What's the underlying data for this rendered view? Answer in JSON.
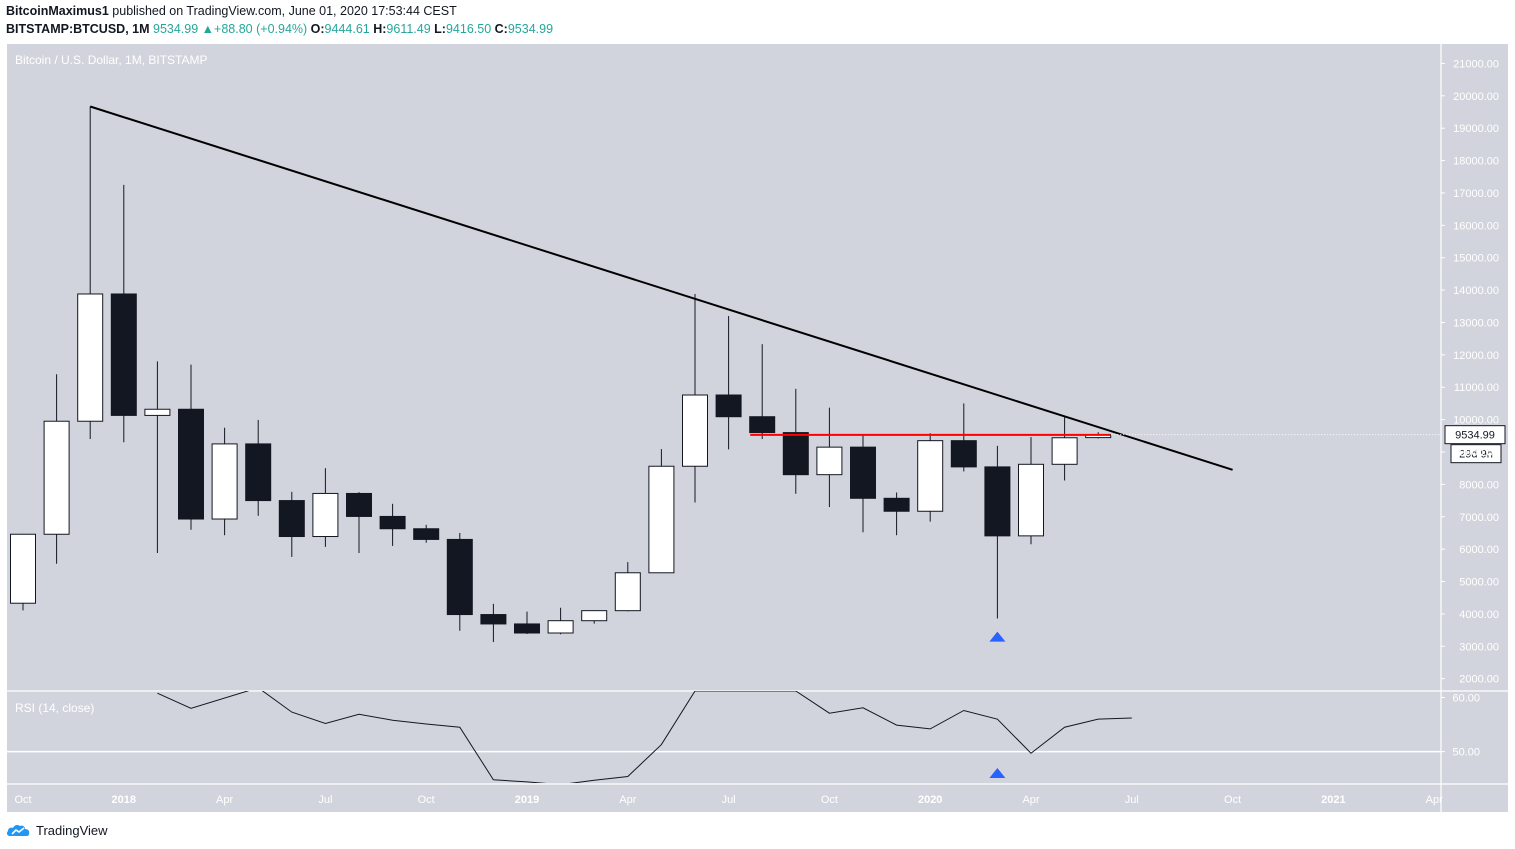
{
  "header": {
    "author": "BitcoinMaximus1",
    "published": "published on TradingView.com, June 01, 2020 17:53:44 CEST",
    "symbol": "BITSTAMP:BTCUSD, 1M",
    "last": "9534.99",
    "change": "+88.80 (+0.94%)",
    "o_label": "O:",
    "o": "9444.61",
    "h_label": "H:",
    "h": "9611.49",
    "l_label": "L:",
    "l": "9416.50",
    "c_label": "C:",
    "c": "9534.99"
  },
  "footer": {
    "brand": "TradingView"
  },
  "colors": {
    "pane_bg": "#d1d4dc",
    "bear_body": "#131722",
    "bull_body": "#ffffff",
    "trendline": "#000000",
    "horizontal_line": "#ff0000",
    "marker": "#2962ff",
    "rsi_line": "#131722"
  },
  "chart_data": [
    {
      "type": "candlestick",
      "title": "Bitcoin / U.S. Dollar, 1M, BITSTAMP",
      "x_axis_ticks": [
        "Oct",
        "2018",
        "Apr",
        "Jul",
        "Oct",
        "2019",
        "Apr",
        "Jul",
        "Oct",
        "2020",
        "Apr",
        "Jul",
        "Oct",
        "2021",
        "Apr"
      ],
      "y_axis_ticks": [
        "21000.00",
        "20000.00",
        "19000.00",
        "18000.00",
        "17000.00",
        "16000.00",
        "15000.00",
        "14000.00",
        "13000.00",
        "12000.00",
        "11000.00",
        "10000.00",
        "9000.00",
        "8000.00",
        "7000.00",
        "6000.00",
        "5000.00",
        "4000.00",
        "3000.00",
        "2000.00"
      ],
      "ylim": [
        1650,
        21600
      ],
      "last_price_label": "9534.99",
      "countdown_label": "29d 9h",
      "candles": [
        {
          "date": "2017-10",
          "o": 4330,
          "h": 6470,
          "l": 4110,
          "c": 6460
        },
        {
          "date": "2017-11",
          "o": 6460,
          "h": 11400,
          "l": 5550,
          "c": 9950
        },
        {
          "date": "2017-12",
          "o": 9950,
          "h": 19670,
          "l": 9400,
          "c": 13880
        },
        {
          "date": "2018-01",
          "o": 13880,
          "h": 17250,
          "l": 9300,
          "c": 10130
        },
        {
          "date": "2018-02",
          "o": 10130,
          "h": 11800,
          "l": 5880,
          "c": 10320
        },
        {
          "date": "2018-03",
          "o": 10320,
          "h": 11700,
          "l": 6600,
          "c": 6930
        },
        {
          "date": "2018-04",
          "o": 6930,
          "h": 9750,
          "l": 6430,
          "c": 9250
        },
        {
          "date": "2018-05",
          "o": 9250,
          "h": 9990,
          "l": 7030,
          "c": 7500
        },
        {
          "date": "2018-06",
          "o": 7500,
          "h": 7770,
          "l": 5760,
          "c": 6390
        },
        {
          "date": "2018-07",
          "o": 6390,
          "h": 8500,
          "l": 6070,
          "c": 7720
        },
        {
          "date": "2018-08",
          "o": 7720,
          "h": 7760,
          "l": 5880,
          "c": 7010
        },
        {
          "date": "2018-09",
          "o": 7010,
          "h": 7400,
          "l": 6100,
          "c": 6630
        },
        {
          "date": "2018-10",
          "o": 6630,
          "h": 6750,
          "l": 6200,
          "c": 6300
        },
        {
          "date": "2018-11",
          "o": 6300,
          "h": 6500,
          "l": 3480,
          "c": 3980
        },
        {
          "date": "2018-12",
          "o": 3980,
          "h": 4310,
          "l": 3130,
          "c": 3690
        },
        {
          "date": "2019-01",
          "o": 3690,
          "h": 4070,
          "l": 3380,
          "c": 3410
        },
        {
          "date": "2019-02",
          "o": 3410,
          "h": 4190,
          "l": 3370,
          "c": 3790
        },
        {
          "date": "2019-03",
          "o": 3790,
          "h": 4100,
          "l": 3700,
          "c": 4100
        },
        {
          "date": "2019-04",
          "o": 4100,
          "h": 5600,
          "l": 4080,
          "c": 5270
        },
        {
          "date": "2019-05",
          "o": 5270,
          "h": 9090,
          "l": 5340,
          "c": 8560
        },
        {
          "date": "2019-06",
          "o": 8560,
          "h": 13880,
          "l": 7440,
          "c": 10760
        },
        {
          "date": "2019-07",
          "o": 10760,
          "h": 13200,
          "l": 9080,
          "c": 10090
        },
        {
          "date": "2019-08",
          "o": 10090,
          "h": 12330,
          "l": 9400,
          "c": 9600
        },
        {
          "date": "2019-09",
          "o": 9600,
          "h": 10950,
          "l": 7710,
          "c": 8300
        },
        {
          "date": "2019-10",
          "o": 8300,
          "h": 10370,
          "l": 7300,
          "c": 9150
        },
        {
          "date": "2019-11",
          "o": 9150,
          "h": 9510,
          "l": 6520,
          "c": 7570
        },
        {
          "date": "2019-12",
          "o": 7570,
          "h": 7750,
          "l": 6430,
          "c": 7170
        },
        {
          "date": "2020-01",
          "o": 7170,
          "h": 9580,
          "l": 6850,
          "c": 9350
        },
        {
          "date": "2020-02",
          "o": 9350,
          "h": 10500,
          "l": 8400,
          "c": 8540
        },
        {
          "date": "2020-03",
          "o": 8540,
          "h": 9190,
          "l": 3860,
          "c": 6410
        },
        {
          "date": "2020-04",
          "o": 6410,
          "h": 9460,
          "l": 6150,
          "c": 8620
        },
        {
          "date": "2020-05",
          "o": 8620,
          "h": 10080,
          "l": 8120,
          "c": 9440
        },
        {
          "date": "2020-06",
          "o": 9444.61,
          "h": 9611.49,
          "l": 9416.5,
          "c": 9534.99
        }
      ],
      "annotations": {
        "trendline": {
          "from": {
            "date": "2017-12",
            "price": 19670
          },
          "to": {
            "date": "2020-10",
            "price": 8450
          }
        },
        "horizontal_line": {
          "price": 9530,
          "from_date": "2019-08",
          "to_date": "2020-06"
        },
        "marker_date": "2020-03"
      }
    },
    {
      "type": "line",
      "title": "RSI (14, close)",
      "y_axis_ticks": [
        "60.00",
        "50.00"
      ],
      "ylim": [
        44.2,
        61.2
      ],
      "reference_line": 50,
      "series": [
        {
          "name": "",
          "values": [
            {
              "date": "2018-02",
              "v": 60.8
            },
            {
              "date": "2018-03",
              "v": 58.0
            },
            {
              "date": "2018-05",
              "v": 61.8
            },
            {
              "date": "2018-06",
              "v": 57.3
            },
            {
              "date": "2018-07",
              "v": 55.2
            },
            {
              "date": "2018-08",
              "v": 56.9
            },
            {
              "date": "2018-09",
              "v": 55.8
            },
            {
              "date": "2018-10",
              "v": 55.1
            },
            {
              "date": "2018-11",
              "v": 54.5
            },
            {
              "date": "2018-12",
              "v": 44.8
            },
            {
              "date": "2019-01",
              "v": 44.4
            },
            {
              "date": "2019-02",
              "v": 43.9
            },
            {
              "date": "2019-03",
              "v": 44.7
            },
            {
              "date": "2019-04",
              "v": 45.4
            },
            {
              "date": "2019-05",
              "v": 51.3
            },
            {
              "date": "2019-06",
              "v": 61.2
            },
            {
              "date": "2019-09",
              "v": 61.2
            },
            {
              "date": "2019-10",
              "v": 57.1
            },
            {
              "date": "2019-11",
              "v": 58.1
            },
            {
              "date": "2019-12",
              "v": 54.9
            },
            {
              "date": "2020-01",
              "v": 54.2
            },
            {
              "date": "2020-02",
              "v": 57.6
            },
            {
              "date": "2020-03",
              "v": 56.0
            },
            {
              "date": "2020-04",
              "v": 49.7
            },
            {
              "date": "2020-05",
              "v": 54.5
            },
            {
              "date": "2020-06",
              "v": 56.0
            },
            {
              "date": "2020-07",
              "v": 56.2
            }
          ]
        }
      ],
      "marker_date": "2020-03"
    }
  ]
}
